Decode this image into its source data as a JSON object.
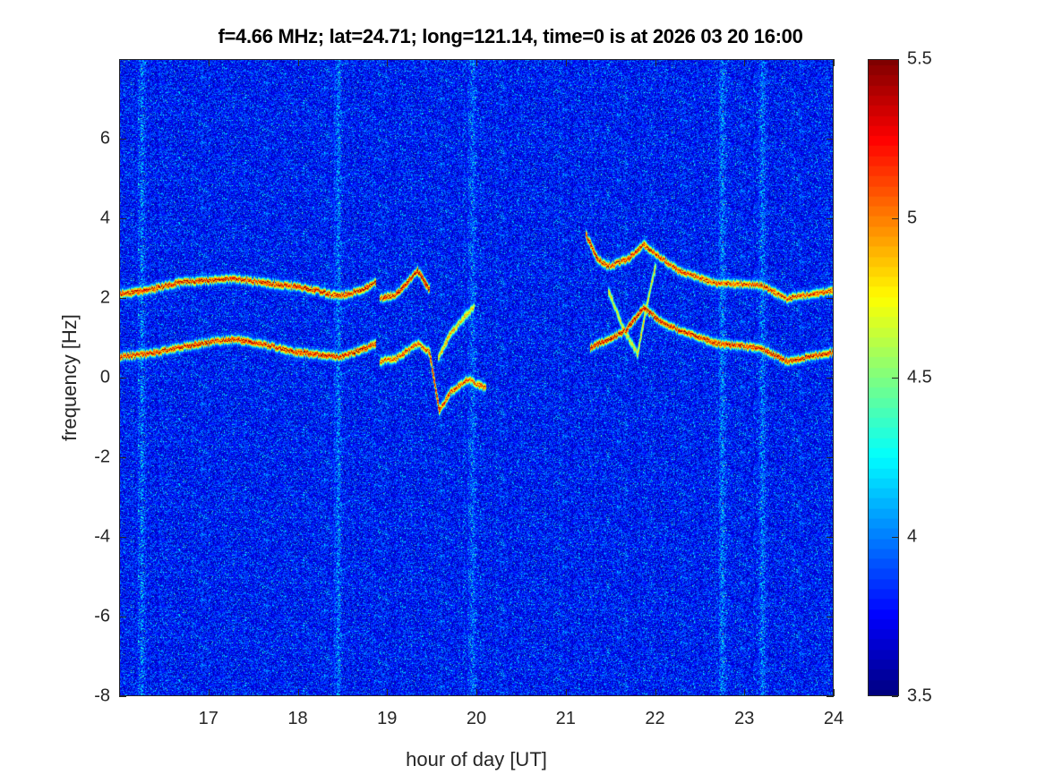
{
  "chart_data": {
    "type": "heatmap",
    "title": "f=4.66 MHz;  lat=24.71; long=121.14, time=0 is at 2026 03 20 16:00",
    "xlabel": "hour of day [UT]",
    "ylabel": "frequency [Hz]",
    "xlim": [
      16,
      24
    ],
    "ylim": [
      -8,
      8
    ],
    "xticks": [
      "17",
      "18",
      "19",
      "20",
      "21",
      "22",
      "23",
      "24"
    ],
    "yticks": [
      "-8",
      "-6",
      "-4",
      "-2",
      "0",
      "2",
      "4",
      "6"
    ],
    "colormap": "jet",
    "clim": [
      3.5,
      5.5
    ],
    "colorbar_ticks": [
      "3.5",
      "4",
      "4.5",
      "5",
      "5.5"
    ],
    "colorbar_location": "right",
    "background_level": 3.8,
    "bright_vertical_bands_hours": [
      16.25,
      18.45,
      19.95,
      22.75,
      23.2
    ],
    "traces": [
      {
        "points": [
          [
            16.0,
            2.1
          ],
          [
            16.3,
            2.2
          ],
          [
            16.67,
            2.4
          ],
          [
            17.0,
            2.45
          ],
          [
            17.27,
            2.5
          ],
          [
            17.6,
            2.4
          ],
          [
            17.97,
            2.3
          ],
          [
            18.2,
            2.2
          ],
          [
            18.47,
            2.05
          ],
          [
            18.7,
            2.2
          ],
          [
            18.87,
            2.4
          ]
        ],
        "peak": 5.5
      },
      {
        "points": [
          [
            18.92,
            2.0
          ],
          [
            19.1,
            2.1
          ],
          [
            19.34,
            2.7
          ],
          [
            19.47,
            2.2
          ]
        ],
        "peak": 5.5
      },
      {
        "points": [
          [
            19.57,
            0.5
          ],
          [
            19.7,
            1.1
          ],
          [
            19.85,
            1.5
          ],
          [
            19.97,
            1.8
          ]
        ],
        "peak": 5.0
      },
      {
        "points": [
          [
            16.0,
            0.53
          ],
          [
            16.3,
            0.6
          ],
          [
            16.67,
            0.76
          ],
          [
            17.0,
            0.9
          ],
          [
            17.27,
            0.98
          ],
          [
            17.6,
            0.85
          ],
          [
            17.97,
            0.65
          ],
          [
            18.2,
            0.6
          ],
          [
            18.47,
            0.53
          ],
          [
            18.7,
            0.7
          ],
          [
            18.87,
            0.87
          ]
        ],
        "peak": 5.5
      },
      {
        "points": [
          [
            18.92,
            0.42
          ],
          [
            19.1,
            0.5
          ],
          [
            19.34,
            0.87
          ],
          [
            19.47,
            0.65
          ],
          [
            19.58,
            -0.82
          ],
          [
            19.7,
            -0.37
          ],
          [
            19.9,
            -0.03
          ],
          [
            20.1,
            -0.26
          ]
        ],
        "peak": 5.3
      },
      {
        "points": [
          [
            21.22,
            3.6
          ],
          [
            21.35,
            3.0
          ],
          [
            21.47,
            2.8
          ],
          [
            21.7,
            3.0
          ],
          [
            21.87,
            3.35
          ],
          [
            22.07,
            3.0
          ],
          [
            22.27,
            2.68
          ],
          [
            22.67,
            2.38
          ],
          [
            23.17,
            2.34
          ],
          [
            23.47,
            2.0
          ],
          [
            24.0,
            2.2
          ]
        ],
        "peak": 5.4
      },
      {
        "points": [
          [
            21.27,
            0.76
          ],
          [
            21.5,
            1.0
          ],
          [
            21.67,
            1.2
          ],
          [
            21.87,
            1.77
          ],
          [
            22.07,
            1.4
          ],
          [
            22.27,
            1.2
          ],
          [
            22.67,
            0.87
          ],
          [
            23.17,
            0.76
          ],
          [
            23.47,
            0.42
          ],
          [
            24.0,
            0.65
          ]
        ],
        "peak": 5.5
      },
      {
        "points": [
          [
            21.47,
            2.2
          ],
          [
            21.65,
            1.2
          ],
          [
            21.8,
            0.6
          ],
          [
            21.9,
            1.8
          ],
          [
            22.0,
            2.8
          ]
        ],
        "peak": 4.8
      }
    ]
  }
}
